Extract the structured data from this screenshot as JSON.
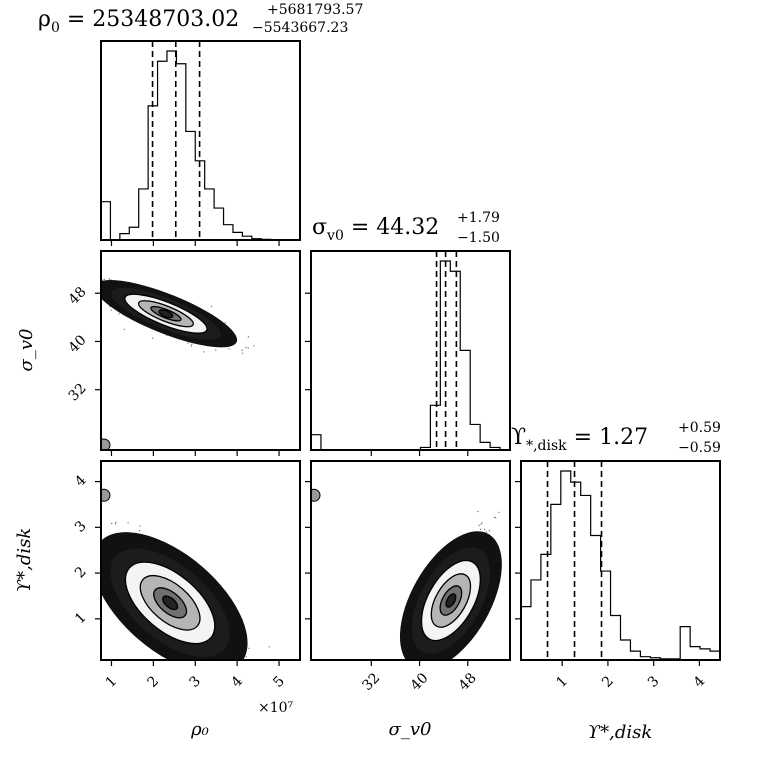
{
  "chart_data": {
    "type": "corner",
    "parameters": [
      {
        "key": "rho0",
        "axis_label": "ρ₀",
        "title": "ρ₀ = 25348703.02",
        "title_main": "ρ",
        "title_sub_main": "0",
        "title_value": " = 25348703.02",
        "title_plus": "+5681793.57",
        "title_minus": "−5543667.23",
        "median": 25348703.02,
        "err_plus": 5681793.57,
        "err_minus": 5543667.23,
        "range": [
          7500000,
          55000000
        ],
        "ticks": [
          10000000,
          20000000,
          30000000,
          40000000,
          50000000
        ],
        "tick_labels": [
          "1",
          "2",
          "3",
          "4",
          "5"
        ],
        "offset_label": "×10⁷",
        "hist_edges": [
          7500000,
          9750000,
          12000000,
          14250000,
          16500000,
          18750000,
          21000000,
          23250000,
          25500000,
          27750000,
          30000000,
          32250000,
          34500000,
          36750000,
          39000000,
          41250000,
          43500000,
          45750000,
          48000000,
          50250000,
          52500000,
          55000000
        ],
        "hist_counts": [
          30,
          0,
          5,
          10,
          40,
          105,
          140,
          148,
          138,
          85,
          62,
          40,
          25,
          12,
          6,
          3,
          1,
          0.5,
          0,
          0,
          0
        ],
        "quantiles": [
          19805035.79,
          25348703.02,
          31030496.59
        ]
      },
      {
        "key": "sigma_v0",
        "axis_label": "σ_v0",
        "title_main": "σ",
        "title_sub_main": "v0",
        "title_value": " = 44.32",
        "title_plus": "+1.79",
        "title_minus": "−1.50",
        "median": 44.32,
        "err_plus": 1.79,
        "err_minus": 1.5,
        "range": [
          22,
          55
        ],
        "ticks": [
          32,
          40,
          48
        ],
        "tick_labels": [
          "32",
          "40",
          "48"
        ],
        "hist_edges": [
          22,
          23.65,
          25.3,
          26.95,
          28.6,
          30.25,
          31.9,
          33.55,
          35.2,
          36.85,
          38.5,
          40.15,
          41.8,
          43.45,
          45.1,
          46.75,
          48.4,
          50.05,
          51.7,
          53.35,
          55
        ],
        "hist_counts": [
          12,
          0,
          0,
          0,
          0,
          0,
          0,
          0,
          0,
          0,
          0,
          2,
          35,
          148,
          140,
          78,
          20,
          6,
          2,
          0
        ],
        "quantiles": [
          42.82,
          44.32,
          46.11
        ]
      },
      {
        "key": "upsilon_disk",
        "axis_label": "ϒ*,disk",
        "title_main": "ϒ",
        "title_sub_main": "*,disk",
        "title_value": " = 1.27",
        "title_plus": "+0.59",
        "title_minus": "−0.59",
        "median": 1.27,
        "err_plus": 0.59,
        "err_minus": 0.59,
        "range": [
          0.1,
          4.45
        ],
        "ticks": [
          1,
          2,
          3,
          4
        ],
        "tick_labels": [
          "1",
          "2",
          "3",
          "4"
        ],
        "hist_edges": [
          0.1,
          0.3175,
          0.535,
          0.7525,
          0.97,
          1.1875,
          1.405,
          1.6225,
          1.84,
          2.0575,
          2.275,
          2.4925,
          2.71,
          2.9275,
          3.145,
          3.3625,
          3.58,
          3.7975,
          4.015,
          4.2325,
          4.45
        ],
        "hist_counts": [
          48,
          72,
          95,
          140,
          170,
          160,
          148,
          112,
          80,
          40,
          18,
          8,
          3,
          2,
          1,
          1,
          30,
          12,
          10,
          8
        ],
        "quantiles": [
          0.68,
          1.27,
          1.86
        ]
      }
    ],
    "contours_2d": [
      {
        "x": "rho0",
        "y": "sigma_v0",
        "center": [
          25348703.02,
          44.32
        ],
        "correlation": "negative"
      },
      {
        "x": "rho0",
        "y": "upsilon_disk",
        "center": [
          25348703.02,
          1.27
        ],
        "correlation": "negative"
      },
      {
        "x": "sigma_v0",
        "y": "upsilon_disk",
        "center": [
          44.32,
          1.27
        ],
        "correlation": "positive"
      }
    ]
  }
}
